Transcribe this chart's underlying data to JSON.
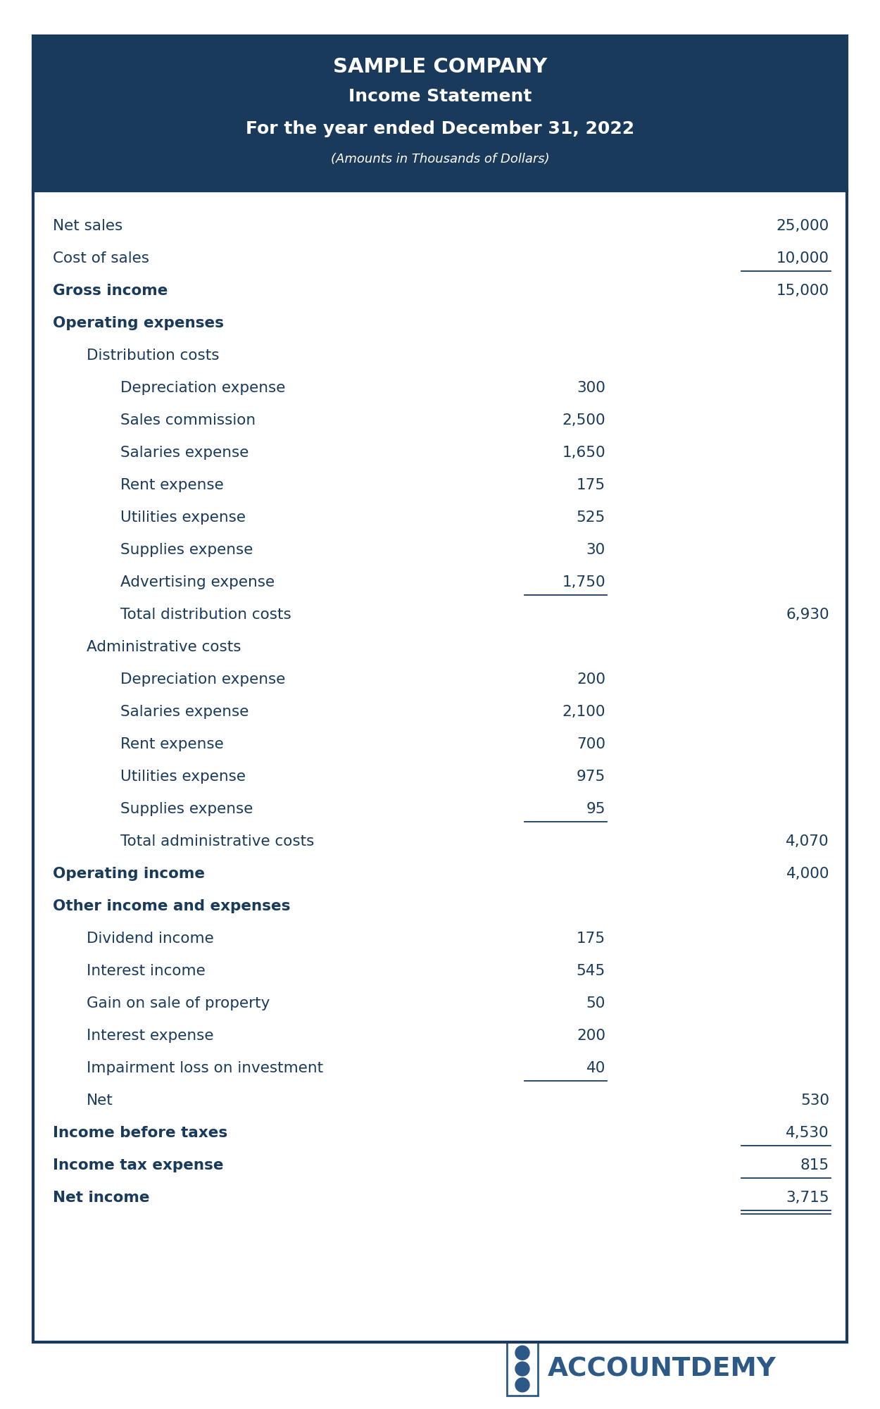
{
  "title_line1": "SAMPLE COMPANY",
  "title_line2": "Income Statement",
  "title_line3": "For the year ended December 31, 2022",
  "title_line4": "(Amounts in Thousands of Dollars)",
  "header_bg": "#1a3a5c",
  "header_text_color": "#ffffff",
  "body_bg": "#ffffff",
  "border_color": "#1a3a5c",
  "text_color": "#1a3a5c",
  "logo_color": "#2d5986",
  "rows": [
    {
      "label": "Net sales",
      "indent": 0,
      "col1": "",
      "col2": "25,000",
      "bold": false,
      "underline_col1": false,
      "underline_col2": false,
      "double_underline": false
    },
    {
      "label": "Cost of sales",
      "indent": 0,
      "col1": "",
      "col2": "10,000",
      "bold": false,
      "underline_col1": false,
      "underline_col2": true,
      "double_underline": false
    },
    {
      "label": "Gross income",
      "indent": 0,
      "col1": "",
      "col2": "15,000",
      "bold": true,
      "underline_col1": false,
      "underline_col2": false,
      "double_underline": false
    },
    {
      "label": "Operating expenses",
      "indent": 0,
      "col1": "",
      "col2": "",
      "bold": true,
      "underline_col1": false,
      "underline_col2": false,
      "double_underline": false
    },
    {
      "label": "Distribution costs",
      "indent": 1,
      "col1": "",
      "col2": "",
      "bold": false,
      "underline_col1": false,
      "underline_col2": false,
      "double_underline": false
    },
    {
      "label": "Depreciation expense",
      "indent": 2,
      "col1": "300",
      "col2": "",
      "bold": false,
      "underline_col1": false,
      "underline_col2": false,
      "double_underline": false
    },
    {
      "label": "Sales commission",
      "indent": 2,
      "col1": "2,500",
      "col2": "",
      "bold": false,
      "underline_col1": false,
      "underline_col2": false,
      "double_underline": false
    },
    {
      "label": "Salaries expense",
      "indent": 2,
      "col1": "1,650",
      "col2": "",
      "bold": false,
      "underline_col1": false,
      "underline_col2": false,
      "double_underline": false
    },
    {
      "label": "Rent expense",
      "indent": 2,
      "col1": "175",
      "col2": "",
      "bold": false,
      "underline_col1": false,
      "underline_col2": false,
      "double_underline": false
    },
    {
      "label": "Utilities expense",
      "indent": 2,
      "col1": "525",
      "col2": "",
      "bold": false,
      "underline_col1": false,
      "underline_col2": false,
      "double_underline": false
    },
    {
      "label": "Supplies expense",
      "indent": 2,
      "col1": "30",
      "col2": "",
      "bold": false,
      "underline_col1": false,
      "underline_col2": false,
      "double_underline": false
    },
    {
      "label": "Advertising expense",
      "indent": 2,
      "col1": "1,750",
      "col2": "",
      "bold": false,
      "underline_col1": true,
      "underline_col2": false,
      "double_underline": false
    },
    {
      "label": "Total distribution costs",
      "indent": 2,
      "col1": "",
      "col2": "6,930",
      "bold": false,
      "underline_col1": false,
      "underline_col2": false,
      "double_underline": false
    },
    {
      "label": "Administrative costs",
      "indent": 1,
      "col1": "",
      "col2": "",
      "bold": false,
      "underline_col1": false,
      "underline_col2": false,
      "double_underline": false
    },
    {
      "label": "Depreciation expense",
      "indent": 2,
      "col1": "200",
      "col2": "",
      "bold": false,
      "underline_col1": false,
      "underline_col2": false,
      "double_underline": false
    },
    {
      "label": "Salaries expense",
      "indent": 2,
      "col1": "2,100",
      "col2": "",
      "bold": false,
      "underline_col1": false,
      "underline_col2": false,
      "double_underline": false
    },
    {
      "label": "Rent expense",
      "indent": 2,
      "col1": "700",
      "col2": "",
      "bold": false,
      "underline_col1": false,
      "underline_col2": false,
      "double_underline": false
    },
    {
      "label": "Utilities expense",
      "indent": 2,
      "col1": "975",
      "col2": "",
      "bold": false,
      "underline_col1": false,
      "underline_col2": false,
      "double_underline": false
    },
    {
      "label": "Supplies expense",
      "indent": 2,
      "col1": "95",
      "col2": "",
      "bold": false,
      "underline_col1": true,
      "underline_col2": false,
      "double_underline": false
    },
    {
      "label": "Total administrative costs",
      "indent": 2,
      "col1": "",
      "col2": "4,070",
      "bold": false,
      "underline_col1": false,
      "underline_col2": false,
      "double_underline": false
    },
    {
      "label": "Operating income",
      "indent": 0,
      "col1": "",
      "col2": "4,000",
      "bold": true,
      "underline_col1": false,
      "underline_col2": false,
      "double_underline": false
    },
    {
      "label": "Other income and expenses",
      "indent": 0,
      "col1": "",
      "col2": "",
      "bold": true,
      "underline_col1": false,
      "underline_col2": false,
      "double_underline": false
    },
    {
      "label": "Dividend income",
      "indent": 1,
      "col1": "175",
      "col2": "",
      "bold": false,
      "underline_col1": false,
      "underline_col2": false,
      "double_underline": false
    },
    {
      "label": "Interest income",
      "indent": 1,
      "col1": "545",
      "col2": "",
      "bold": false,
      "underline_col1": false,
      "underline_col2": false,
      "double_underline": false
    },
    {
      "label": "Gain on sale of property",
      "indent": 1,
      "col1": "50",
      "col2": "",
      "bold": false,
      "underline_col1": false,
      "underline_col2": false,
      "double_underline": false
    },
    {
      "label": "Interest expense",
      "indent": 1,
      "col1": "200",
      "col2": "",
      "bold": false,
      "underline_col1": false,
      "underline_col2": false,
      "double_underline": false
    },
    {
      "label": "Impairment loss on investment",
      "indent": 1,
      "col1": "40",
      "col2": "",
      "bold": false,
      "underline_col1": true,
      "underline_col2": false,
      "double_underline": false
    },
    {
      "label": "Net",
      "indent": 1,
      "col1": "",
      "col2": "530",
      "bold": false,
      "underline_col1": false,
      "underline_col2": false,
      "double_underline": false
    },
    {
      "label": "Income before taxes",
      "indent": 0,
      "col1": "",
      "col2": "4,530",
      "bold": true,
      "underline_col1": false,
      "underline_col2": true,
      "double_underline": false
    },
    {
      "label": "Income tax expense",
      "indent": 0,
      "col1": "",
      "col2": "815",
      "bold": true,
      "underline_col1": false,
      "underline_col2": true,
      "double_underline": false
    },
    {
      "label": "Net income",
      "indent": 0,
      "col1": "",
      "col2": "3,715",
      "bold": true,
      "underline_col1": false,
      "underline_col2": true,
      "double_underline": true
    }
  ],
  "fig_width": 12.5,
  "fig_height": 20.01,
  "dpi": 100
}
